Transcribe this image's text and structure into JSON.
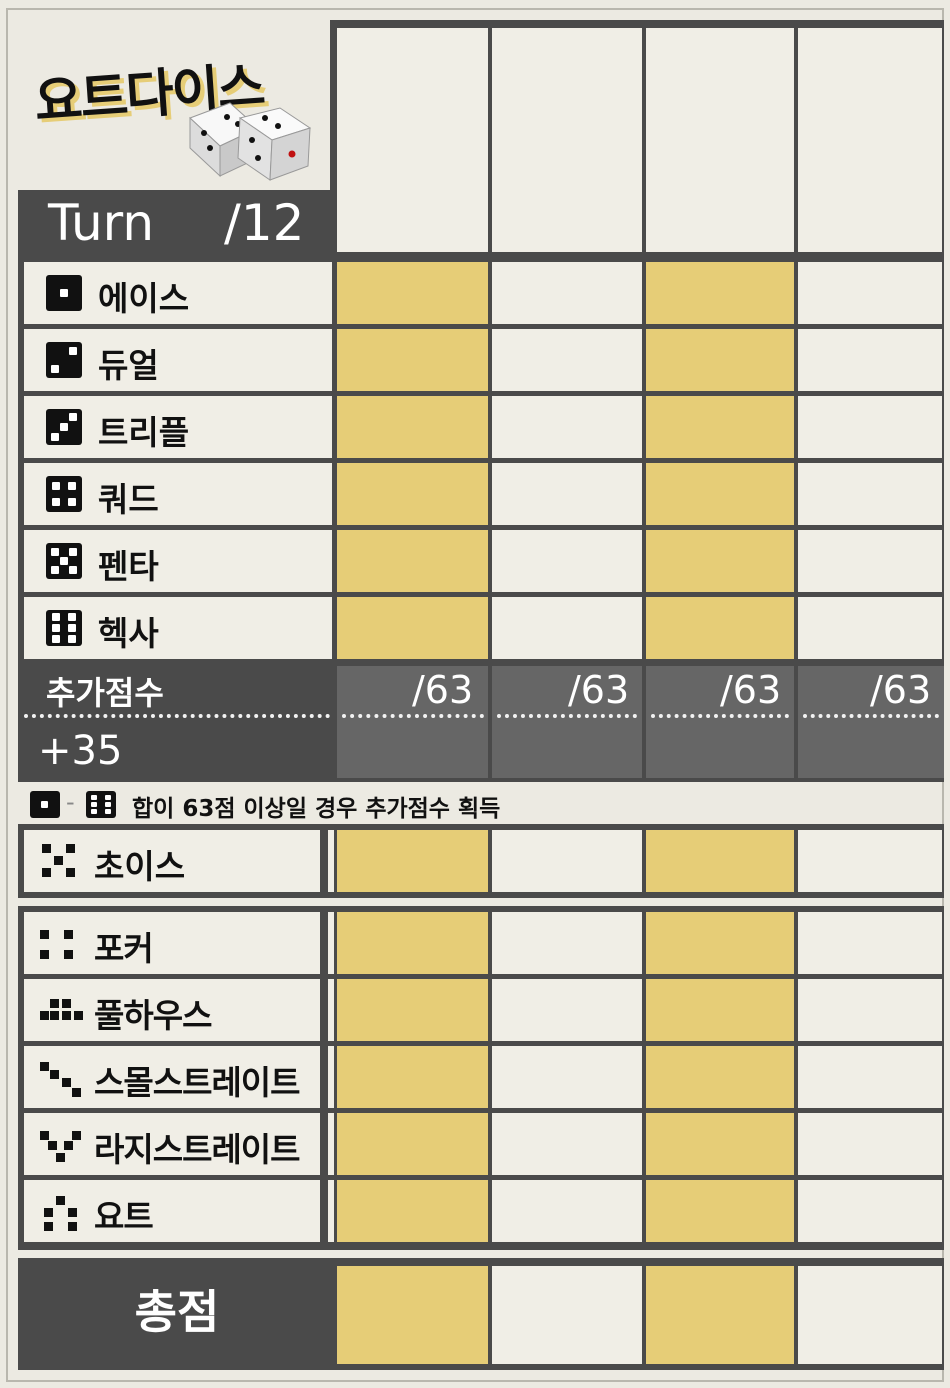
{
  "app": {
    "title": "요트다이스"
  },
  "turn": {
    "label": "Turn",
    "total": "/12"
  },
  "categories_upper": [
    {
      "name": "에이스",
      "icon": "die-one-icon"
    },
    {
      "name": "듀얼",
      "icon": "die-two-icon"
    },
    {
      "name": "트리플",
      "icon": "die-three-icon"
    },
    {
      "name": "쿼드",
      "icon": "die-four-icon"
    },
    {
      "name": "펜타",
      "icon": "die-five-icon"
    },
    {
      "name": "헥사",
      "icon": "die-six-icon"
    }
  ],
  "bonus": {
    "label": "추가점수",
    "value": "+35",
    "column_totals": [
      "/63",
      "/63",
      "/63",
      "/63"
    ],
    "note": "합이 63점 이상일 경우 추가점수 획득",
    "note_dash": "-"
  },
  "choice": {
    "name": "초이스",
    "icon": "choice-dice-icon"
  },
  "categories_lower": [
    {
      "name": "포커",
      "icon": "four-of-a-kind-icon"
    },
    {
      "name": "풀하우스",
      "icon": "full-house-icon"
    },
    {
      "name": "스몰스트레이트",
      "icon": "small-straight-icon"
    },
    {
      "name": "라지스트레이트",
      "icon": "large-straight-icon"
    },
    {
      "name": "요트",
      "icon": "yacht-icon"
    }
  ],
  "total": {
    "label": "총점"
  },
  "colors": {
    "yellow": "#e6cd77",
    "light": "#f0eee6",
    "dark": "#4a4a4a",
    "bonus_gray": "#666666"
  }
}
